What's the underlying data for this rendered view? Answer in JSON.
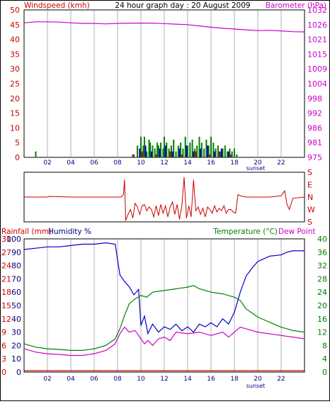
{
  "chart_data": [
    {
      "type": "bar",
      "title": "24 hour graph day : 20 August 2009",
      "ylabel_left": "Windspeed (kmh)",
      "ylabel_right": "Barometer (hPa)",
      "y_ticks_left": [
        0,
        5,
        10,
        15,
        20,
        25,
        30,
        35,
        40,
        45,
        50
      ],
      "y_ticks_right": [
        "975",
        "981",
        "986",
        "992",
        "998",
        "1004",
        "1009",
        "1015",
        "1021",
        "1026",
        "1032"
      ],
      "x_ticks": [
        "02",
        "04",
        "06",
        "08",
        "10",
        "12",
        "14",
        "16",
        "18",
        "20",
        "22"
      ],
      "x_annotation": "sunset",
      "ylim_left": [
        0,
        50
      ],
      "ylim_right": [
        975,
        1032
      ],
      "xlim": [
        0,
        24
      ],
      "grid": true,
      "colors": {
        "windspeed_label": "#cc0000",
        "barometer": "#cc00cc",
        "wind_bars": "#008000",
        "gust_bars": "#0000cc",
        "calm_bars": "#cc0000"
      },
      "series": [
        {
          "key": "barometer",
          "x": [
            0,
            1,
            2,
            3,
            4,
            5,
            6,
            7,
            8,
            9,
            10,
            11,
            12,
            13,
            14,
            15,
            16,
            17,
            18,
            19,
            20,
            21,
            22,
            23,
            24
          ],
          "values": [
            1027.0,
            1027.4,
            1027.4,
            1027.3,
            1027.0,
            1026.8,
            1026.8,
            1026.6,
            1026.8,
            1026.9,
            1026.9,
            1026.9,
            1026.7,
            1026.5,
            1026.3,
            1025.8,
            1025.3,
            1024.9,
            1024.6,
            1024.3,
            1024.0,
            1024.1,
            1023.9,
            1023.6,
            1023.5
          ]
        },
        {
          "key": "wind",
          "x": [
            1.0,
            9.3,
            9.7,
            9.9,
            10.0,
            10.2,
            10.3,
            10.5,
            10.7,
            10.8,
            11.0,
            11.2,
            11.4,
            11.5,
            11.7,
            11.9,
            12.0,
            12.2,
            12.4,
            12.6,
            12.8,
            13.0,
            13.2,
            13.4,
            13.6,
            13.8,
            14.0,
            14.2,
            14.4,
            14.6,
            14.8,
            15.0,
            15.2,
            15.4,
            15.6,
            15.8,
            16.0,
            16.2,
            16.4,
            16.6,
            16.8,
            17.0,
            17.2,
            17.4,
            17.6,
            17.8,
            18.0,
            18.2
          ],
          "values": [
            2,
            1,
            4,
            3,
            7,
            4,
            7,
            2,
            6,
            5,
            4,
            3,
            5,
            4,
            5,
            3,
            7,
            5,
            3,
            4,
            6,
            2,
            4,
            5,
            3,
            7,
            4,
            5,
            6,
            3,
            4,
            7,
            5,
            3,
            6,
            4,
            7,
            5,
            3,
            4,
            2,
            3,
            4,
            2,
            3,
            2,
            3,
            1
          ]
        },
        {
          "key": "gust",
          "x": [
            9.9,
            10.4,
            10.9,
            11.6,
            12.1,
            12.7,
            13.3,
            13.9,
            14.5,
            15.1,
            15.7,
            16.3,
            16.9,
            17.5
          ],
          "values": [
            3,
            4,
            2,
            3,
            4,
            2,
            3,
            4,
            2,
            3,
            4,
            2,
            3,
            2
          ]
        },
        {
          "key": "calm",
          "x": [
            9.4,
            10.1,
            11.3,
            12.5,
            13.5,
            14.7,
            15.9,
            16.7,
            17.7
          ],
          "values": [
            1,
            2,
            1,
            2,
            1,
            2,
            1,
            2,
            1
          ]
        }
      ]
    },
    {
      "type": "line",
      "title": "",
      "y_ticks_right": [
        "S",
        "E",
        "N",
        "W",
        "S"
      ],
      "ylim": [
        0,
        4
      ],
      "xlim": [
        0,
        24
      ],
      "color": "#cc0000",
      "series": [
        {
          "key": "direction",
          "x": [
            0,
            2,
            2.1,
            4,
            6,
            8,
            8.3,
            8.5,
            8.6,
            8.7,
            8.9,
            9.1,
            9.3,
            9.5,
            9.7,
            9.9,
            10.1,
            10.3,
            10.5,
            10.7,
            10.9,
            11.1,
            11.3,
            11.5,
            11.7,
            11.9,
            12.1,
            12.3,
            12.5,
            12.7,
            12.9,
            13.1,
            13.3,
            13.5,
            13.7,
            13.9,
            14.1,
            14.3,
            14.5,
            14.7,
            14.9,
            15.1,
            15.3,
            15.5,
            15.7,
            15.9,
            16.1,
            16.3,
            16.5,
            16.7,
            16.9,
            17.1,
            17.3,
            17.5,
            17.7,
            17.9,
            18.1,
            18.3,
            18.5,
            19,
            20,
            21,
            22,
            22.3,
            22.5,
            22.7,
            23,
            24
          ],
          "values": [
            2.0,
            2.0,
            2.05,
            2.0,
            2.0,
            2.0,
            2.0,
            2.2,
            3.4,
            0.1,
            0.6,
            1.0,
            0.3,
            1.5,
            1.2,
            0.6,
            1.3,
            1.4,
            0.9,
            1.2,
            1.0,
            0.4,
            1.3,
            0.5,
            1.4,
            0.7,
            1.3,
            0.4,
            1.2,
            1.6,
            0.6,
            1.4,
            0.2,
            1.3,
            3.6,
            0.3,
            1.3,
            0.4,
            3.4,
            0.9,
            1.2,
            0.6,
            1.1,
            0.4,
            1.2,
            1.0,
            0.7,
            1.3,
            0.8,
            1.1,
            0.9,
            1.3,
            0.7,
            1.0,
            1.0,
            0.8,
            0.7,
            2.2,
            2.1,
            2.0,
            2.0,
            2.0,
            2.1,
            2.5,
            1.4,
            1.0,
            1.9,
            2.0
          ]
        }
      ]
    },
    {
      "type": "line",
      "ylabel_left_1": "Rainfall (mm)",
      "ylabel_left_2": "Humidity %",
      "ylabel_right_1": "Temperature (°C)",
      "ylabel_right_2": "Dew Point",
      "rain_ticks": [
        "0",
        "3",
        "6",
        "9",
        "12",
        "15",
        "18",
        "21",
        "24",
        "27",
        "30"
      ],
      "humidity_ticks": [
        "0",
        "10",
        "20",
        "30",
        "40",
        "50",
        "60",
        "70",
        "80",
        "90",
        "100"
      ],
      "temp_ticks": [
        "0",
        "4",
        "8",
        "12",
        "16",
        "20",
        "24",
        "28",
        "32",
        "36",
        "40"
      ],
      "x_ticks": [
        "02",
        "04",
        "06",
        "08",
        "10",
        "12",
        "14",
        "16",
        "18",
        "20",
        "22"
      ],
      "x_annotation": "sunset",
      "ylim_humidity": [
        0,
        100
      ],
      "ylim_temperature": [
        0,
        40
      ],
      "ylim_rainfall": [
        0,
        30
      ],
      "xlim": [
        0,
        24
      ],
      "colors": {
        "rainfall": "#cc0000",
        "humidity": "#0000cc",
        "temperature": "#008000",
        "dew_point": "#cc00cc"
      },
      "series": [
        {
          "key": "humidity",
          "x": [
            0,
            1,
            2,
            3,
            4,
            5,
            6,
            7,
            7.8,
            8.2,
            8.6,
            9.0,
            9.4,
            9.8,
            10.0,
            10.3,
            10.6,
            11.0,
            11.5,
            12.0,
            12.5,
            13.0,
            13.5,
            14.0,
            14.5,
            15.0,
            15.5,
            16.0,
            16.5,
            17.0,
            17.5,
            18.0,
            18.5,
            19.0,
            19.5,
            20.0,
            20.5,
            21.0,
            22.0,
            22.5,
            23.0,
            24
          ],
          "values": [
            92,
            93,
            94,
            94,
            95,
            96,
            96,
            97,
            96,
            73,
            68,
            64,
            58,
            62,
            35,
            42,
            29,
            36,
            30,
            34,
            32,
            36,
            31,
            34,
            30,
            36,
            34,
            37,
            34,
            40,
            36,
            45,
            60,
            72,
            78,
            83,
            85,
            87,
            88,
            90,
            91,
            91
          ]
        },
        {
          "key": "temperature",
          "x": [
            0,
            1,
            2,
            3,
            4,
            5,
            6,
            7,
            7.8,
            8.2,
            8.6,
            9.0,
            9.5,
            10.0,
            10.5,
            11.0,
            12.0,
            13.0,
            14.0,
            14.5,
            15.0,
            16.0,
            17.0,
            18.0,
            18.5,
            19.0,
            20.0,
            21.0,
            22.0,
            23.0,
            24
          ],
          "values": [
            8.5,
            7.5,
            7.0,
            6.8,
            6.5,
            6.5,
            7.0,
            8.0,
            10.0,
            13.0,
            17.0,
            20.5,
            22.0,
            23.0,
            22.5,
            24.0,
            24.5,
            25.0,
            25.5,
            26.0,
            25.0,
            24.0,
            23.5,
            22.5,
            21.5,
            19.0,
            16.5,
            15.0,
            13.5,
            12.5,
            12.0
          ]
        },
        {
          "key": "dew_point",
          "x": [
            0,
            1,
            2,
            3,
            4,
            5,
            6,
            7,
            7.8,
            8.2,
            8.6,
            9.0,
            9.5,
            10.0,
            10.3,
            10.6,
            11.0,
            11.5,
            12.0,
            12.5,
            13.0,
            14.0,
            15.0,
            16.0,
            17.0,
            17.5,
            18.0,
            18.5,
            19.0,
            20.0,
            21.0,
            22.0,
            23.0,
            24
          ],
          "values": [
            7.0,
            6.0,
            5.5,
            5.3,
            5.0,
            5.0,
            5.5,
            6.5,
            8.5,
            11.5,
            13.5,
            12.0,
            12.5,
            10.0,
            8.5,
            9.5,
            8.0,
            10.0,
            10.5,
            9.5,
            12.0,
            11.5,
            12.0,
            11.0,
            12.0,
            10.5,
            12.0,
            13.5,
            13.0,
            12.0,
            11.5,
            11.0,
            10.5,
            10.0
          ]
        },
        {
          "key": "rainfall",
          "x": [
            0,
            24
          ],
          "values": [
            0,
            0
          ]
        }
      ]
    }
  ]
}
